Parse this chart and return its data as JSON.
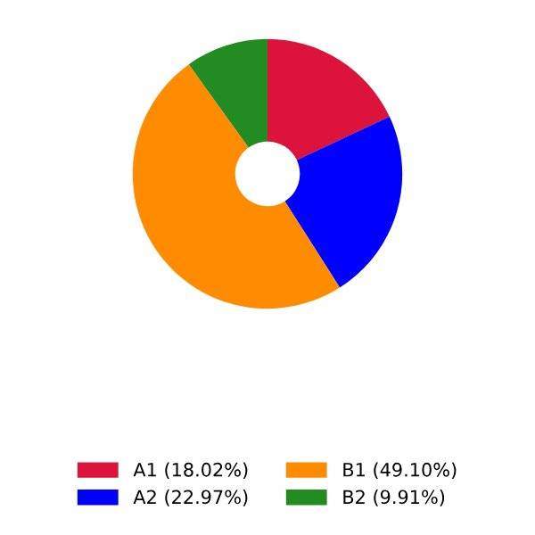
{
  "chart_data": {
    "type": "donut",
    "categories": [
      "A1 (18.02%)",
      "A2 (22.97%)",
      "B1 (49.10%)",
      "B2 (9.91%)"
    ],
    "values": [
      18.02,
      22.97,
      49.1,
      9.91
    ],
    "colors": [
      "#dc143c",
      "#0000ff",
      "#ff8c00",
      "#228b22"
    ],
    "legend": "bottom"
  }
}
